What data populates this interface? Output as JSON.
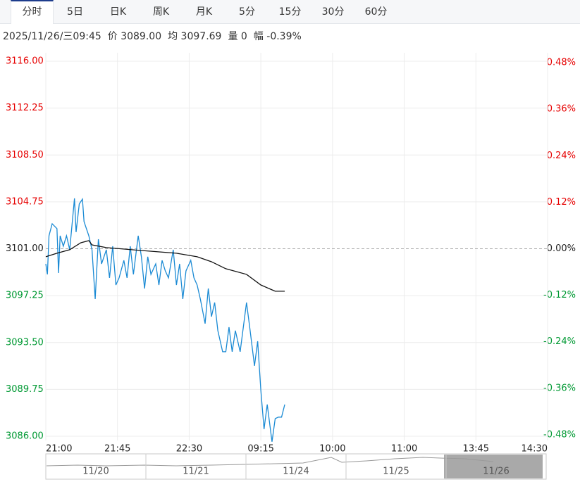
{
  "tabs": [
    "分时",
    "5日",
    "日K",
    "周K",
    "月K",
    "5分",
    "15分",
    "30分",
    "60分"
  ],
  "info": [
    "2025/11/26/三09:45",
    "价 3089.00",
    "均 3097.69",
    "量 0",
    "幅 -0.39%"
  ],
  "chart_data": {
    "type": "line",
    "ref_value": 3101,
    "xlim": [
      0,
      315
    ],
    "xticks": [
      {
        "value": 0,
        "label": "21:00"
      },
      {
        "value": 45,
        "label": "21:45"
      },
      {
        "value": 90,
        "label": "22:30"
      },
      {
        "value": 135,
        "label": "09:15"
      },
      {
        "value": 180,
        "label": "10:00"
      },
      {
        "value": 225,
        "label": "11:00"
      },
      {
        "value": 270,
        "label": "13:45"
      },
      {
        "value": 315,
        "label": "14:30"
      }
    ],
    "ylim": [
      3086,
      3116
    ],
    "yticks": [
      {
        "value": 3116,
        "label": "3116.00"
      },
      {
        "value": 3112.25,
        "label": "3112.25"
      },
      {
        "value": 3108.5,
        "label": "3108.50"
      },
      {
        "value": 3104.75,
        "label": "3104.75"
      },
      {
        "value": 3101,
        "label": "3101.00"
      },
      {
        "value": 3097.25,
        "label": "3097.25"
      },
      {
        "value": 3093.5,
        "label": "3093.50"
      },
      {
        "value": 3089.75,
        "label": "3089.75"
      },
      {
        "value": 3086,
        "label": "3086.00"
      }
    ],
    "y2lim": [
      -0.4837,
      0.4837
    ],
    "y2ticks": [
      {
        "value": 0.48,
        "label": "0.48%"
      },
      {
        "value": 0.36,
        "label": "0.36%"
      },
      {
        "value": 0.24,
        "label": "0.24%"
      },
      {
        "value": 0.12,
        "label": "0.12%"
      },
      {
        "value": 0,
        "label": "0.00%"
      },
      {
        "value": -0.12,
        "label": "-0.12%"
      },
      {
        "value": -0.24,
        "label": "-0.24%"
      },
      {
        "value": -0.36,
        "label": "-0.36%"
      },
      {
        "value": -0.48,
        "label": "-0.48%"
      }
    ],
    "up_color": "#e60000",
    "down_color": "#009933",
    "flat_color": "#222222",
    "grid": true,
    "series": [
      {
        "color": "#1a8ad4",
        "x": [
          0,
          1,
          2,
          4,
          7,
          8,
          9,
          11,
          13,
          15,
          18,
          19,
          21,
          23,
          24,
          27,
          29,
          31,
          33,
          35,
          38,
          40,
          42,
          44,
          46,
          49,
          51,
          53,
          55,
          58,
          60,
          62,
          64,
          66,
          69,
          71,
          73,
          75,
          77,
          80,
          82,
          84,
          86,
          88,
          91,
          93,
          95,
          97,
          100,
          102,
          104,
          106,
          108,
          111,
          113,
          115,
          117,
          119,
          122,
          124,
          126,
          128,
          131,
          133,
          135,
          137,
          139,
          142,
          144,
          146,
          148,
          150
        ],
        "values": [
          3099.79,
          3098.95,
          3102.04,
          3103.0,
          3102.61,
          3099.06,
          3102.04,
          3101.2,
          3102.04,
          3100.92,
          3105.03,
          3102.33,
          3104.58,
          3104.97,
          3103.17,
          3102.04,
          3100.92,
          3096.98,
          3101.76,
          3099.79,
          3100.92,
          3098.67,
          3101.2,
          3098.1,
          3098.67,
          3100.07,
          3098.67,
          3101.2,
          3098.95,
          3102.04,
          3100.36,
          3097.82,
          3100.36,
          3098.95,
          3099.79,
          3098.1,
          3100.07,
          3099.23,
          3098.67,
          3100.92,
          3098.1,
          3099.79,
          3096.98,
          3099.23,
          3100.07,
          3098.67,
          3098.1,
          3096.98,
          3095.01,
          3097.82,
          3095.57,
          3096.7,
          3094.45,
          3092.76,
          3092.76,
          3094.73,
          3092.76,
          3094.45,
          3092.76,
          3094.73,
          3096.7,
          3094.73,
          3091.63,
          3093.6,
          3089.66,
          3086.57,
          3088.54,
          3085.56,
          3087.41,
          3087.53,
          3087.53,
          3088.54
        ]
      },
      {
        "color": "#111111",
        "x": [
          0,
          7,
          15,
          22,
          27,
          29,
          38,
          60,
          82,
          95,
          104,
          113,
          126,
          135,
          144,
          150
        ],
        "values": [
          3100.36,
          3100.64,
          3100.92,
          3101.48,
          3101.65,
          3101.31,
          3101.09,
          3100.86,
          3100.64,
          3100.36,
          3099.96,
          3099.4,
          3098.95,
          3098.1,
          3097.6,
          3097.6
        ]
      }
    ],
    "navigator": [
      "11/20",
      "11/21",
      "11/24",
      "11/25",
      "11/26"
    ]
  }
}
